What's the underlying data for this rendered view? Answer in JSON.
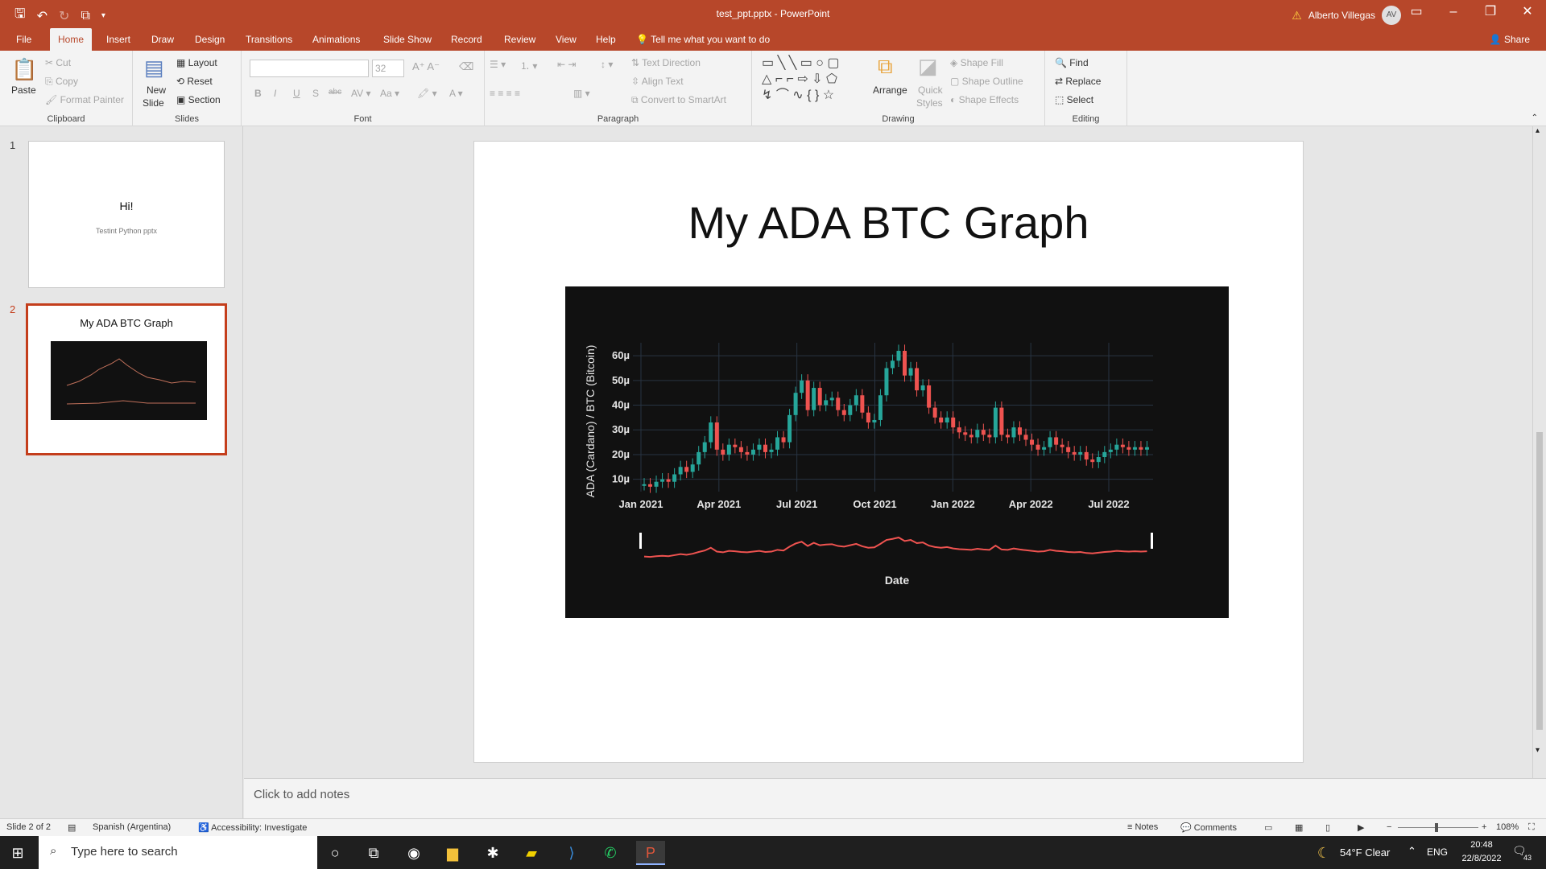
{
  "window": {
    "doc_title": "test_ppt.pptx  -  PowerPoint",
    "user_name": "Alberto Villegas",
    "user_initials": "AV"
  },
  "tabs": [
    "File",
    "Home",
    "Insert",
    "Draw",
    "Design",
    "Transitions",
    "Animations",
    "Slide Show",
    "Record",
    "Review",
    "View",
    "Help"
  ],
  "tell_me": "Tell me what you want to do",
  "share": "Share",
  "ribbon": {
    "clipboard": {
      "paste": "Paste",
      "cut": "Cut",
      "copy": "Copy",
      "format_painter": "Format Painter",
      "label": "Clipboard"
    },
    "slides": {
      "new_slide_1": "New",
      "new_slide_2": "Slide",
      "layout": "Layout",
      "reset": "Reset",
      "section": "Section",
      "label": "Slides"
    },
    "font": {
      "font_size": "32",
      "bold": "B",
      "italic": "I",
      "underline": "U",
      "shadow": "S",
      "strike": "abc",
      "label": "Font"
    },
    "paragraph": {
      "text_direction": "Text Direction",
      "align_text": "Align Text",
      "convert_smartart": "Convert to SmartArt",
      "label": "Paragraph"
    },
    "drawing": {
      "arrange": "Arrange",
      "quick_styles_1": "Quick",
      "quick_styles_2": "Styles",
      "shape_fill": "Shape Fill",
      "shape_outline": "Shape Outline",
      "shape_effects": "Shape Effects",
      "label": "Drawing"
    },
    "editing": {
      "find": "Find",
      "replace": "Replace",
      "select": "Select",
      "label": "Editing"
    }
  },
  "thumbnails": [
    {
      "num": "1",
      "title": "Hi!",
      "subtitle": "Testint Python pptx"
    },
    {
      "num": "2",
      "title": "My ADA BTC Graph"
    }
  ],
  "slide": {
    "title": "My ADA BTC Graph"
  },
  "notes_placeholder": "Click to add notes",
  "status": {
    "slide_of": "Slide 2 of 2",
    "language": "Spanish (Argentina)",
    "accessibility": "Accessibility: Investigate",
    "notes": "Notes",
    "comments": "Comments",
    "zoom": "108%"
  },
  "taskbar": {
    "search_placeholder": "Type here to search",
    "weather": "54°F  Clear",
    "lang": "ENG",
    "time": "20:48",
    "date": "22/8/2022",
    "notifications": "43"
  },
  "chart_data": {
    "type": "candlestick",
    "title": "",
    "xlabel": "Date",
    "ylabel": "ADA (Cardano) / BTC (Bitcoin)",
    "x_ticks": [
      "Jan 2021",
      "Apr 2021",
      "Jul 2021",
      "Oct 2021",
      "Jan 2022",
      "Apr 2022",
      "Jul 2022"
    ],
    "y_ticks": [
      "10µ",
      "20µ",
      "30µ",
      "40µ",
      "50µ",
      "60µ"
    ],
    "ylim": [
      5,
      62
    ],
    "x_start": "2021-01-01",
    "x_end": "2022-08-22",
    "series": [
      {
        "values": [
          8,
          7,
          9,
          10,
          9,
          12,
          15,
          13,
          16,
          21,
          25,
          33,
          22,
          20,
          24,
          23,
          21,
          20,
          22,
          24,
          21,
          22,
          27,
          25,
          36,
          45,
          50,
          38,
          47,
          40,
          42,
          43,
          38,
          36,
          40,
          44,
          37,
          33,
          34,
          44,
          55,
          58,
          62,
          52,
          55,
          46,
          48,
          39,
          35,
          33,
          35,
          31,
          29,
          28,
          27,
          30,
          28,
          27,
          39,
          28,
          27,
          31,
          28,
          26,
          24,
          22,
          23,
          27,
          24,
          23,
          21,
          20,
          21,
          18,
          17,
          19,
          21,
          22,
          24,
          23,
          22,
          23,
          22,
          23
        ]
      }
    ],
    "colors": {
      "up": "#26a69a",
      "down": "#ef5350",
      "background": "#111111",
      "grid": "#283442"
    },
    "range_slider": true
  }
}
